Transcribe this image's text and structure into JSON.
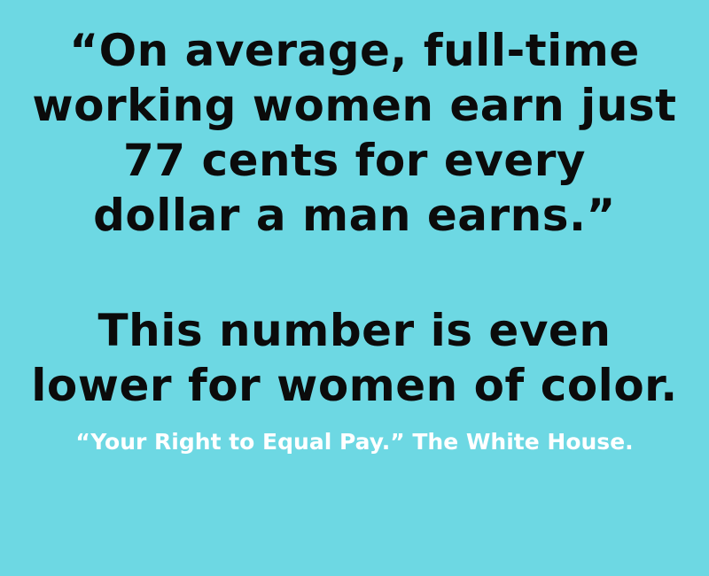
{
  "quote": {
    "lines": [
      "“On average, full-time",
      "working women earn just",
      "77 cents for every",
      "dollar a man earns.”"
    ]
  },
  "statement": {
    "lines": [
      "This number is even",
      "lower for women of color."
    ]
  },
  "source": {
    "text": "“Your Right to Equal Pay.” The White House."
  },
  "colors": {
    "background": "#6dd8e3",
    "main_text": "#0b0b0b",
    "source_text": "#ffffff"
  }
}
